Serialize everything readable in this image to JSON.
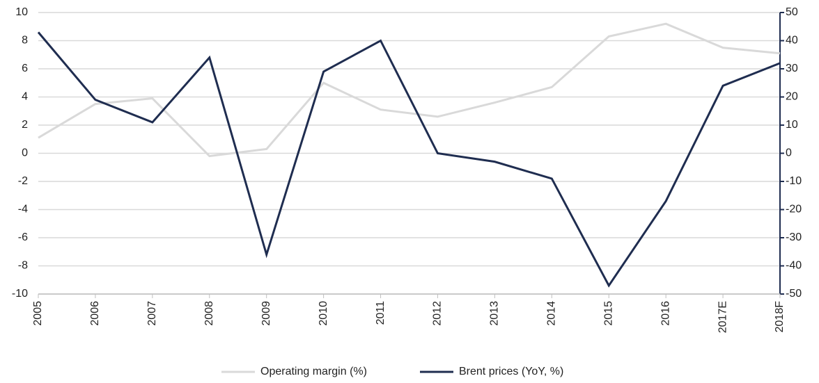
{
  "chart_data": {
    "type": "line",
    "categories": [
      "2005",
      "2006",
      "2007",
      "2008",
      "2009",
      "2010",
      "2011",
      "2012",
      "2013",
      "2014",
      "2015",
      "2016",
      "2017E",
      "2018F"
    ],
    "series": [
      {
        "name": "Operating margin (%)",
        "color": "#d9d9d9",
        "values": [
          1.1,
          3.5,
          3.9,
          -0.2,
          0.3,
          5.0,
          3.1,
          2.6,
          3.6,
          4.7,
          8.3,
          9.2,
          7.5,
          7.1
        ]
      },
      {
        "name": "Brent prices (YoY, %)",
        "color": "#1f2d50",
        "axis": "y2",
        "values": [
          43,
          19,
          11,
          34,
          -36,
          29,
          40,
          0,
          -3,
          -9,
          -47,
          -17,
          24,
          32
        ]
      }
    ],
    "ylim": [
      -10,
      10
    ],
    "yticks": [
      -10,
      -8,
      -6,
      -4,
      -2,
      0,
      2,
      4,
      6,
      8,
      10
    ],
    "y2lim": [
      -50,
      50
    ],
    "y2ticks": [
      -50,
      -40,
      -30,
      -20,
      -10,
      0,
      10,
      20,
      30,
      40,
      50
    ],
    "grid": true,
    "legend": "bottom"
  }
}
